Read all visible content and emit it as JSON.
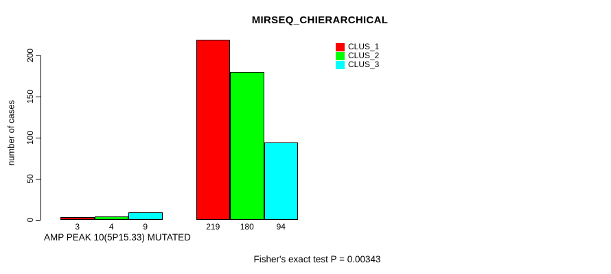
{
  "chart_data": {
    "type": "bar",
    "title": "MIRSEQ_CHIERARCHICAL",
    "ylabel": "number of cases",
    "xlabel": "",
    "ylim": [
      0,
      220
    ],
    "yticks": [
      0,
      50,
      100,
      150,
      200
    ],
    "grid": false,
    "legend_position": "top-right-inside",
    "bar_outline_color": "#000000",
    "series": [
      {
        "name": "CLUS_1",
        "color": "#ff0000"
      },
      {
        "name": "CLUS_2",
        "color": "#00ff00"
      },
      {
        "name": "CLUS_3",
        "color": "#00ffff"
      }
    ],
    "groups": [
      {
        "label": "AMP PEAK 10(5P15.33) MUTATED",
        "values": [
          3,
          4,
          9
        ]
      },
      {
        "label": "",
        "values": [
          219,
          180,
          94
        ]
      }
    ],
    "annotation": "Fisher's exact test P = 0.00343"
  }
}
